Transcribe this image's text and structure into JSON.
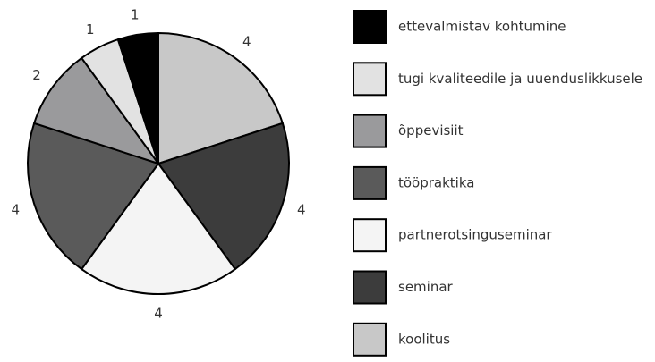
{
  "chart_data": {
    "type": "pie",
    "categories": [
      "ettevalmistav kohtumine",
      "tugi kvaliteedile ja uuenduslikkusele",
      "õppevisiit",
      "tööpraktika",
      "partnerotsinguseminar",
      "seminar",
      "koolitus"
    ],
    "values": [
      1,
      1,
      2,
      4,
      4,
      4,
      4
    ],
    "colors": [
      "#000000",
      "#e2e2e2",
      "#9a9a9c",
      "#5a5a5a",
      "#f4f4f4",
      "#3c3c3c",
      "#c8c8c8"
    ],
    "legend": "right"
  }
}
